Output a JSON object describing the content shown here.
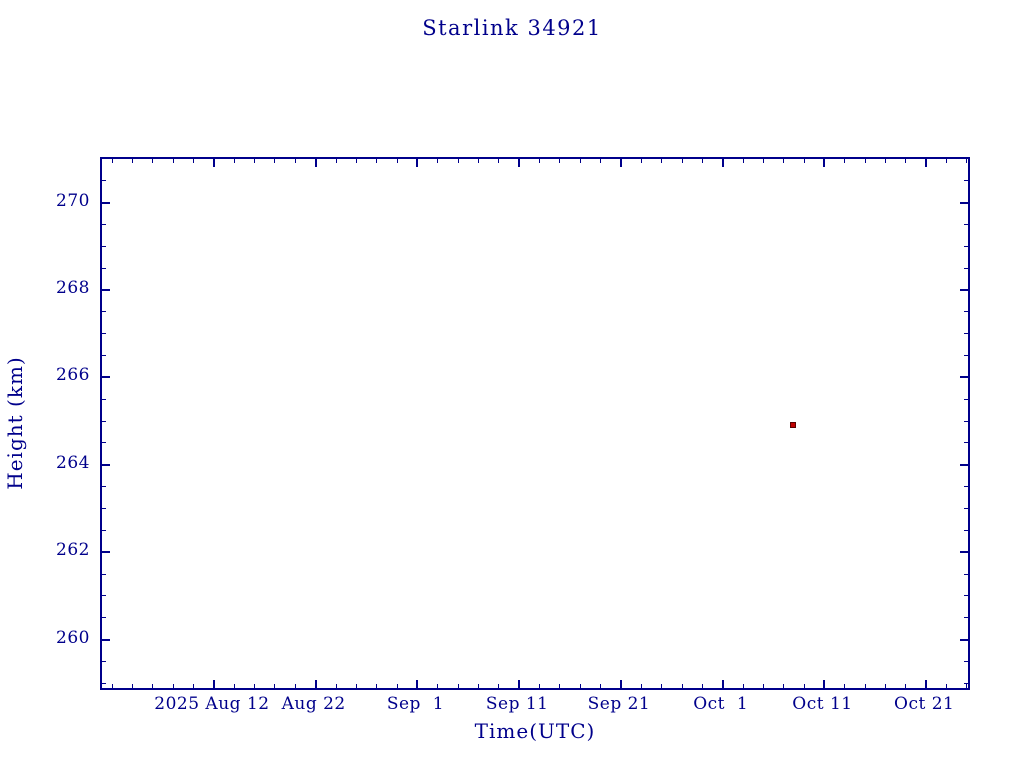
{
  "colors": {
    "axis": "#00008b",
    "text": "#00008b",
    "background": "#ffffff",
    "point_fill": "#c00000",
    "point_border": "#5a0000"
  },
  "chart_data": {
    "type": "scatter",
    "title": "Starlink 34921",
    "xlabel": "Time(UTC)",
    "ylabel": "Height (km)",
    "grid": false,
    "x_axis": {
      "unit": "days since 2025 Aug 1",
      "lim": [
        0,
        85.5
      ],
      "minor_step_days": 2,
      "ticks": [
        {
          "day": 11,
          "label": "2025 Aug 12"
        },
        {
          "day": 21,
          "label": "Aug 22"
        },
        {
          "day": 31,
          "label": "Sep  1"
        },
        {
          "day": 41,
          "label": "Sep 11"
        },
        {
          "day": 51,
          "label": "Sep 21"
        },
        {
          "day": 61,
          "label": "Oct  1"
        },
        {
          "day": 71,
          "label": "Oct 11"
        },
        {
          "day": 81,
          "label": "Oct 21"
        }
      ]
    },
    "y_axis": {
      "lim": [
        258.8,
        271.0
      ],
      "minor_step_km": 0.5,
      "ticks": [
        {
          "value": 260,
          "label": "260"
        },
        {
          "value": 262,
          "label": "262"
        },
        {
          "value": 264,
          "label": "264"
        },
        {
          "value": 266,
          "label": "266"
        },
        {
          "value": 268,
          "label": "268"
        },
        {
          "value": 270,
          "label": "270"
        }
      ]
    },
    "series": [
      {
        "name": "height",
        "marker": "filled-square",
        "color": "#c00000",
        "points": [
          {
            "day": 68.1,
            "approx_date": "2025 Oct 8",
            "height_km": 264.87
          }
        ]
      }
    ]
  }
}
